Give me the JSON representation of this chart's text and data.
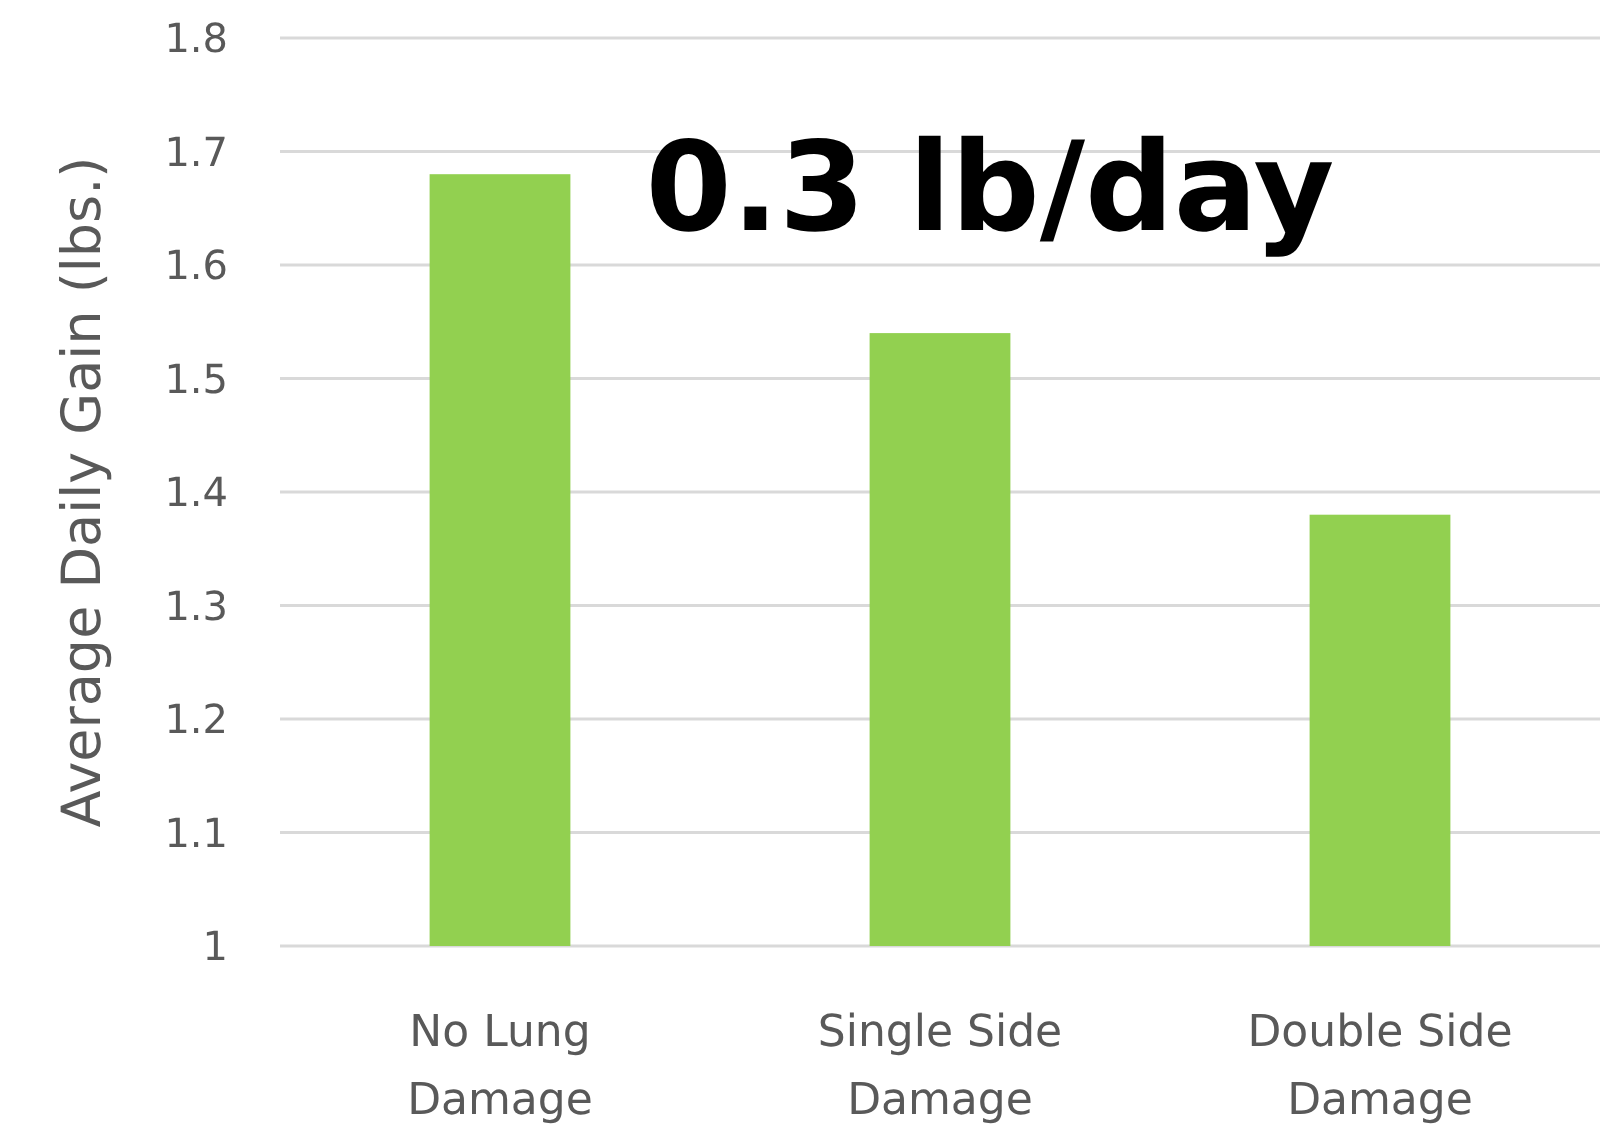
{
  "chart_data": {
    "type": "bar",
    "ylabel": "Average Daily Gain (lbs.)",
    "categories": [
      "No Lung Damage",
      "Single Side Damage",
      "Double Side Damage"
    ],
    "values": [
      1.68,
      1.54,
      1.38
    ],
    "color": "#92d050",
    "ylim": [
      1,
      1.8
    ],
    "yticks": [
      1,
      1.1,
      1.2,
      1.3,
      1.4,
      1.5,
      1.6,
      1.7,
      1.8
    ],
    "grid": "y",
    "annotations": [
      "0.3 lb/day"
    ]
  }
}
